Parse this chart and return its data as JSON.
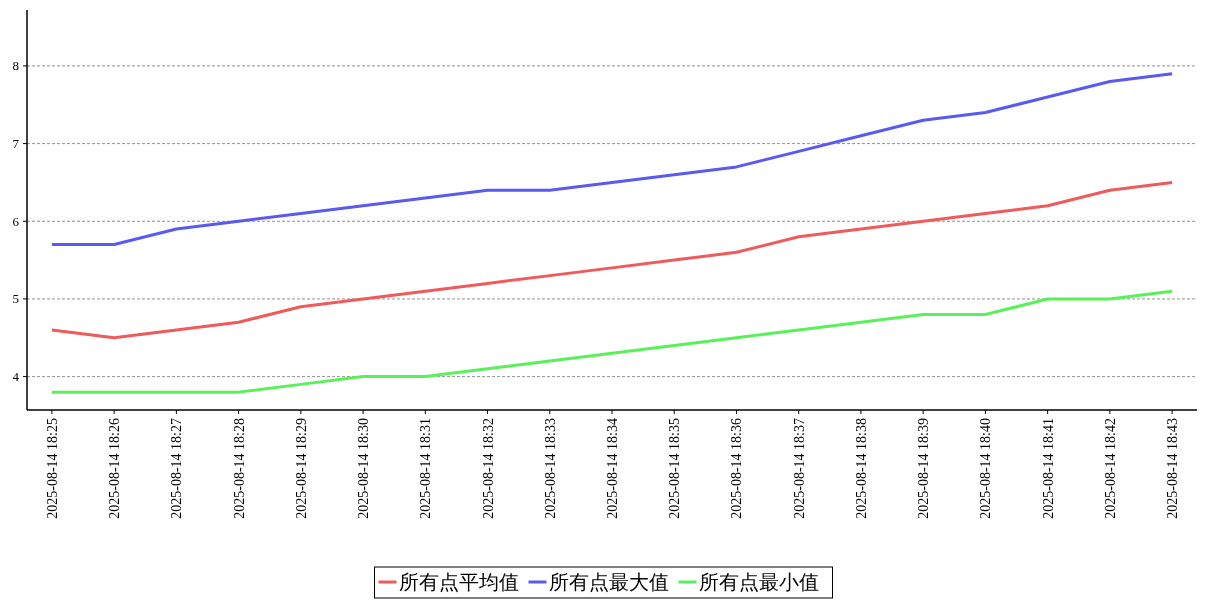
{
  "chart_data": {
    "type": "line",
    "categories": [
      "2025-08-14 18:25",
      "2025-08-14 18:26",
      "2025-08-14 18:27",
      "2025-08-14 18:28",
      "2025-08-14 18:29",
      "2025-08-14 18:30",
      "2025-08-14 18:31",
      "2025-08-14 18:32",
      "2025-08-14 18:33",
      "2025-08-14 18:34",
      "2025-08-14 18:35",
      "2025-08-14 18:36",
      "2025-08-14 18:37",
      "2025-08-14 18:38",
      "2025-08-14 18:39",
      "2025-08-14 18:40",
      "2025-08-14 18:41",
      "2025-08-14 18:42",
      "2025-08-14 18:43"
    ],
    "series": [
      {
        "name": "所有点平均值",
        "color": "#f05a5a",
        "values": [
          4.6,
          4.5,
          4.6,
          4.7,
          4.9,
          5.0,
          5.1,
          5.2,
          5.3,
          5.4,
          5.5,
          5.6,
          5.8,
          5.9,
          6.0,
          6.1,
          6.2,
          6.4,
          6.5
        ]
      },
      {
        "name": "所有点最大值",
        "color": "#5a5af0",
        "values": [
          5.7,
          5.7,
          5.9,
          6.0,
          6.1,
          6.2,
          6.3,
          6.4,
          6.4,
          6.5,
          6.6,
          6.7,
          6.9,
          7.1,
          7.3,
          7.4,
          7.6,
          7.8,
          7.9
        ]
      },
      {
        "name": "所有点最小值",
        "color": "#5af05a",
        "values": [
          3.8,
          3.8,
          3.8,
          3.8,
          3.9,
          4.0,
          4.0,
          4.1,
          4.2,
          4.3,
          4.4,
          4.5,
          4.6,
          4.7,
          4.8,
          4.8,
          5.0,
          5.0,
          5.1
        ]
      }
    ],
    "ylim": [
      3.57,
      8.72
    ],
    "yticks": [
      4,
      5,
      6,
      7,
      8
    ],
    "grid": "y",
    "legend": "bottom",
    "marker": "none",
    "line_style": "solid"
  }
}
